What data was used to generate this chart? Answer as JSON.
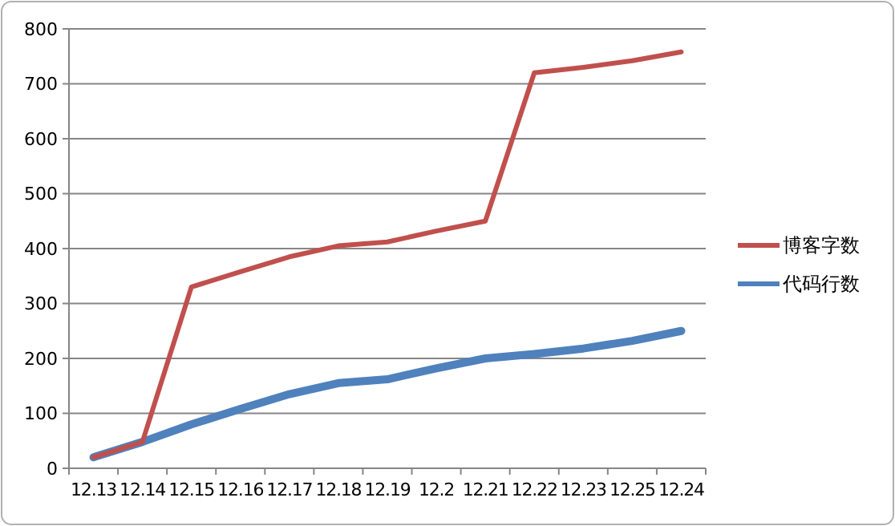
{
  "chart_data": {
    "type": "line",
    "categories": [
      "12.13",
      "12.14",
      "12.15",
      "12.16",
      "12.17",
      "12.18",
      "12.19",
      "12.2",
      "12.21",
      "12.22",
      "12.23",
      "12.25",
      "12.24"
    ],
    "series": [
      {
        "name": "博客字数",
        "color": "#c0504d",
        "values": [
          20,
          48,
          330,
          358,
          385,
          405,
          412,
          432,
          450,
          720,
          730,
          742,
          758
        ]
      },
      {
        "name": "代码行数",
        "color": "#4f81bd",
        "values": [
          20,
          48,
          80,
          108,
          135,
          155,
          162,
          182,
          200,
          208,
          218,
          232,
          250
        ]
      }
    ],
    "ylim": [
      0,
      800
    ],
    "yticks": [
      0,
      100,
      200,
      300,
      400,
      500,
      600,
      700,
      800
    ],
    "grid": "y",
    "legend": "right",
    "marker": "none",
    "line_style": "solid"
  }
}
